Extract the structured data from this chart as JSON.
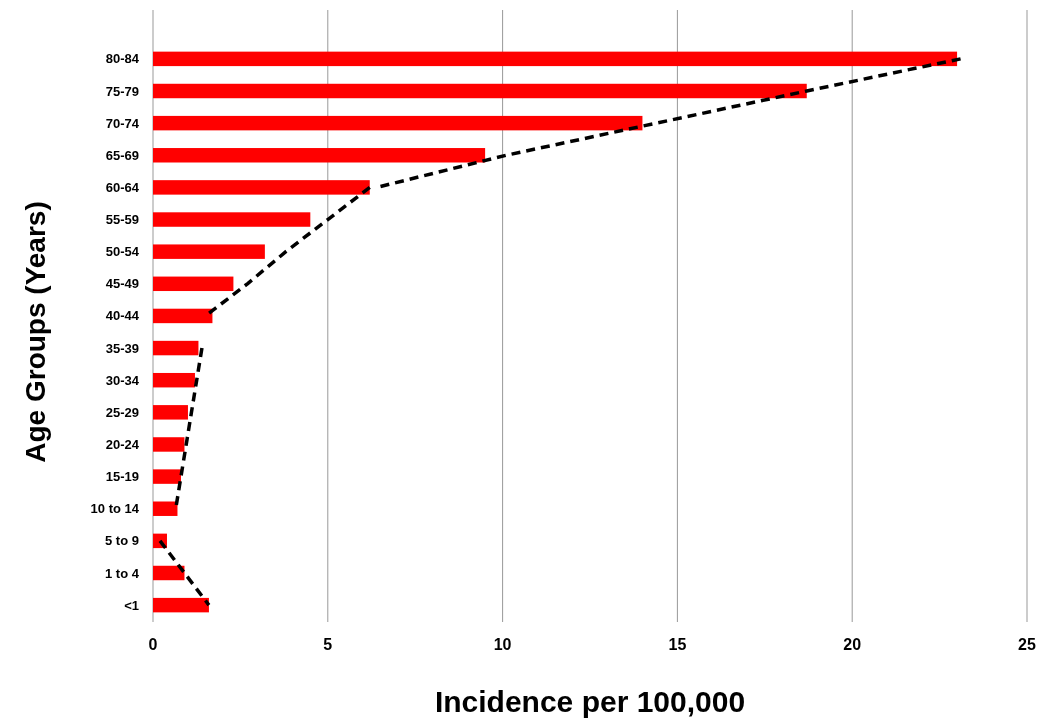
{
  "chart_data": {
    "type": "bar",
    "orientation": "horizontal",
    "xlabel": "Incidence per 100,000",
    "ylabel": "Age Groups (Years)",
    "categories": [
      "80-84",
      "75-79",
      "70-74",
      "65-69",
      "60-64",
      "55-59",
      "50-54",
      "45-49",
      "40-44",
      "35-39",
      "30-34",
      "25-29",
      "20-24",
      "15-19",
      "10 to 14",
      "5 to 9",
      "1 to 4",
      "<1"
    ],
    "series": [
      {
        "color": "#ff0000",
        "values": [
          23.0,
          18.7,
          14.0,
          9.5,
          6.2,
          4.5,
          3.2,
          2.3,
          1.7,
          1.3,
          1.2,
          1.0,
          0.9,
          0.8,
          0.7,
          0.4,
          0.9,
          1.6
        ]
      },
      {
        "type": "line",
        "color": "#000000",
        "line_style": "dashed",
        "values": [
          null,
          null,
          null,
          null,
          null,
          null,
          null,
          null,
          null,
          null,
          null,
          null,
          null,
          null,
          null,
          0.2,
          0.9,
          1.6
        ]
      },
      {
        "type": "line",
        "color": "#000000",
        "line_style": "dashed",
        "values": [
          null,
          null,
          null,
          null,
          null,
          null,
          null,
          null,
          null,
          1.4,
          1.25,
          1.1,
          0.95,
          0.8,
          0.65,
          null,
          null,
          null
        ]
      },
      {
        "type": "line",
        "color": "#000000",
        "line_style": "dashed",
        "values": [
          null,
          null,
          null,
          null,
          6.2,
          5.0,
          3.8,
          2.7,
          1.5,
          null,
          null,
          null,
          null,
          null,
          null,
          null,
          null,
          null
        ]
      },
      {
        "type": "line",
        "color": "#000000",
        "line_style": "dashed",
        "values": [
          23.1,
          18.7,
          14.4,
          10.1,
          6.4,
          null,
          null,
          null,
          null,
          null,
          null,
          null,
          null,
          null,
          null,
          null,
          null,
          null
        ]
      }
    ],
    "xlim": [
      0,
      25
    ],
    "xticks": [
      0,
      5,
      10,
      15,
      20,
      25
    ],
    "grid": "x"
  }
}
